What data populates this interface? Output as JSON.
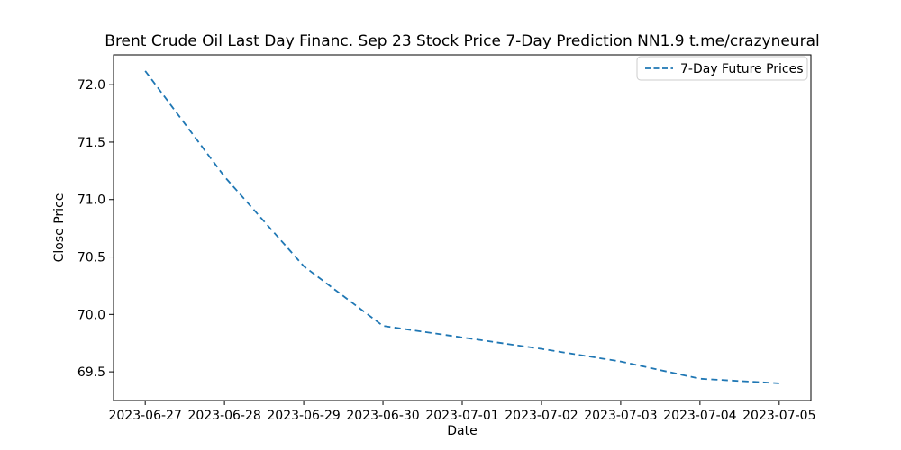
{
  "chart_data": {
    "type": "line",
    "title": "Brent Crude Oil Last Day Financ. Sep 23 Stock Price 7-Day Prediction NN1.9 t.me/crazyneural",
    "xlabel": "Date",
    "ylabel": "Close Price",
    "categories": [
      "2023-06-27",
      "2023-06-28",
      "2023-06-29",
      "2023-06-30",
      "2023-07-01",
      "2023-07-02",
      "2023-07-03",
      "2023-07-04",
      "2023-07-05"
    ],
    "series": [
      {
        "name": "7-Day Future Prices",
        "values": [
          72.12,
          71.2,
          70.42,
          69.9,
          69.8,
          69.7,
          69.59,
          69.44,
          69.4
        ],
        "color": "#1f77b4",
        "line_style": "dashed"
      }
    ],
    "ylim": [
      69.25,
      72.26
    ],
    "yticks": [
      69.5,
      70.0,
      70.5,
      71.0,
      71.5,
      72.0
    ],
    "grid": false,
    "legend": {
      "position": "upper right",
      "entries": [
        "7-Day Future Prices"
      ],
      "border_color": "#cccccc",
      "background": "#ffffff"
    }
  },
  "colors": {
    "background": "#ffffff",
    "text": "#000000",
    "axis": "#000000"
  }
}
